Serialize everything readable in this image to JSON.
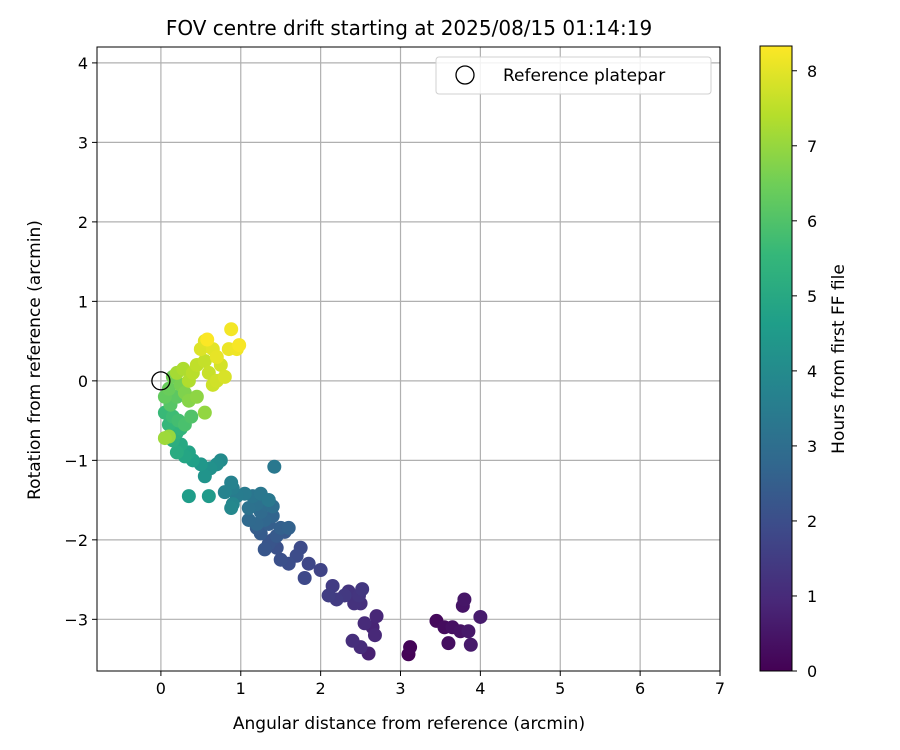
{
  "chart_data": {
    "type": "scatter",
    "title": "FOV centre drift starting at 2025/08/15 01:14:19",
    "xlabel": "Angular distance from reference (arcmin)",
    "ylabel": "Rotation from reference (arcmin)",
    "xlim": [
      -0.8,
      7.0
    ],
    "ylim": [
      -3.65,
      4.2
    ],
    "x_ticks": [
      0,
      1,
      2,
      3,
      4,
      5,
      6,
      7
    ],
    "y_ticks": [
      -3,
      -2,
      -1,
      0,
      1,
      2,
      3,
      4
    ],
    "x_tick_labels": [
      "0",
      "1",
      "2",
      "3",
      "4",
      "5",
      "6",
      "7"
    ],
    "y_tick_labels": [
      "−3",
      "−2",
      "−1",
      "0",
      "1",
      "2",
      "3",
      "4"
    ],
    "grid": true,
    "legend": {
      "placement": "top-right",
      "entries": [
        "Reference platepar"
      ]
    },
    "reference_point": {
      "x": 0,
      "y": 0,
      "label": "Reference platepar"
    },
    "colorbar": {
      "label": "Hours from first FF file",
      "min": 0,
      "max": 8.33,
      "ticks": [
        0,
        1,
        2,
        3,
        4,
        5,
        6,
        7,
        8
      ],
      "tick_labels": [
        "0",
        "1",
        "2",
        "3",
        "4",
        "5",
        "6",
        "7",
        "8"
      ],
      "colormap": "viridis"
    },
    "colormap_stops": [
      "#440154",
      "#482878",
      "#3e4989",
      "#31688e",
      "#26828e",
      "#1f9e89",
      "#35b779",
      "#6ece58",
      "#b5de2b",
      "#fde725"
    ],
    "points": [
      [
        3.1,
        -3.44,
        0.05
      ],
      [
        3.12,
        -3.35,
        0.1
      ],
      [
        3.45,
        -3.02,
        0.18
      ],
      [
        3.55,
        -3.1,
        0.25
      ],
      [
        3.6,
        -3.3,
        0.3
      ],
      [
        3.65,
        -3.1,
        0.35
      ],
      [
        3.75,
        -3.15,
        0.4
      ],
      [
        3.78,
        -2.83,
        0.45
      ],
      [
        3.8,
        -2.75,
        0.5
      ],
      [
        3.85,
        -3.15,
        0.55
      ],
      [
        3.88,
        -3.32,
        0.6
      ],
      [
        4.0,
        -2.97,
        0.65
      ],
      [
        2.6,
        -3.43,
        0.75
      ],
      [
        2.65,
        -3.1,
        0.85
      ],
      [
        2.7,
        -2.96,
        0.9
      ],
      [
        2.68,
        -3.2,
        0.95
      ],
      [
        2.55,
        -3.05,
        1.0
      ],
      [
        2.5,
        -3.35,
        1.05
      ],
      [
        2.4,
        -3.27,
        1.1
      ],
      [
        2.5,
        -2.8,
        1.15
      ],
      [
        2.42,
        -2.8,
        1.2
      ],
      [
        2.35,
        -2.65,
        1.25
      ],
      [
        2.48,
        -2.7,
        1.3
      ],
      [
        2.52,
        -2.62,
        1.35
      ],
      [
        2.3,
        -2.7,
        1.4
      ],
      [
        2.2,
        -2.75,
        1.45
      ],
      [
        2.15,
        -2.58,
        1.5
      ],
      [
        2.1,
        -2.7,
        1.55
      ],
      [
        2.0,
        -2.38,
        1.7
      ],
      [
        1.85,
        -2.3,
        1.8
      ],
      [
        1.8,
        -2.48,
        1.85
      ],
      [
        1.75,
        -2.1,
        1.9
      ],
      [
        1.7,
        -2.2,
        1.95
      ],
      [
        1.6,
        -2.3,
        2.0
      ],
      [
        1.5,
        -2.25,
        2.05
      ],
      [
        1.45,
        -2.1,
        2.1
      ],
      [
        1.4,
        -2.0,
        2.15
      ],
      [
        1.35,
        -2.05,
        2.2
      ],
      [
        1.3,
        -2.12,
        2.25
      ],
      [
        1.55,
        -1.9,
        2.3
      ],
      [
        1.45,
        -1.95,
        2.35
      ],
      [
        1.25,
        -1.92,
        2.4
      ],
      [
        1.2,
        -1.85,
        2.45
      ],
      [
        1.35,
        -1.8,
        2.5
      ],
      [
        1.5,
        -1.85,
        2.55
      ],
      [
        1.6,
        -1.85,
        2.6
      ],
      [
        1.4,
        -1.7,
        2.7
      ],
      [
        1.3,
        -1.75,
        2.75
      ],
      [
        1.2,
        -1.8,
        2.8
      ],
      [
        1.1,
        -1.75,
        2.85
      ],
      [
        1.25,
        -1.65,
        2.9
      ],
      [
        1.3,
        -1.55,
        2.95
      ],
      [
        1.4,
        -1.58,
        3.0
      ],
      [
        1.35,
        -1.5,
        3.05
      ],
      [
        1.2,
        -1.55,
        3.1
      ],
      [
        1.1,
        -1.6,
        3.15
      ],
      [
        1.15,
        -1.45,
        3.25
      ],
      [
        1.25,
        -1.42,
        3.3
      ],
      [
        1.35,
        -1.5,
        3.35
      ],
      [
        1.42,
        -1.08,
        3.35
      ],
      [
        1.05,
        -1.42,
        3.45
      ],
      [
        0.95,
        -1.45,
        3.5
      ],
      [
        0.9,
        -1.35,
        3.6
      ],
      [
        0.88,
        -1.28,
        3.7
      ],
      [
        0.8,
        -1.4,
        3.75
      ],
      [
        0.9,
        -1.55,
        3.85
      ],
      [
        0.88,
        -1.6,
        3.9
      ],
      [
        0.75,
        -1.0,
        4.0
      ],
      [
        0.7,
        -1.05,
        4.1
      ],
      [
        0.62,
        -1.1,
        4.2
      ],
      [
        0.55,
        -1.2,
        4.3
      ],
      [
        0.5,
        -1.05,
        4.4
      ],
      [
        0.6,
        -1.45,
        4.5
      ],
      [
        0.35,
        -1.45,
        4.6
      ],
      [
        0.4,
        -1.0,
        4.7
      ],
      [
        0.35,
        -0.9,
        4.8
      ],
      [
        0.3,
        -0.95,
        4.9
      ],
      [
        0.25,
        -0.8,
        5.0
      ],
      [
        0.2,
        -0.9,
        5.1
      ],
      [
        0.15,
        -0.75,
        5.2
      ],
      [
        0.2,
        -0.65,
        5.3
      ],
      [
        0.25,
        -0.6,
        5.4
      ],
      [
        0.1,
        -0.55,
        5.5
      ],
      [
        0.05,
        -0.4,
        5.6
      ],
      [
        0.15,
        -0.45,
        5.7
      ],
      [
        0.22,
        -0.5,
        5.8
      ],
      [
        0.3,
        -0.55,
        5.9
      ],
      [
        0.38,
        -0.45,
        6.0
      ],
      [
        0.12,
        -0.3,
        6.1
      ],
      [
        0.2,
        -0.2,
        6.2
      ],
      [
        0.05,
        -0.2,
        6.3
      ],
      [
        0.1,
        -0.1,
        6.4
      ],
      [
        0.15,
        0.05,
        6.5
      ],
      [
        0.25,
        -0.05,
        6.6
      ],
      [
        0.3,
        -0.15,
        6.7
      ],
      [
        0.35,
        -0.25,
        6.8
      ],
      [
        0.45,
        -0.2,
        6.9
      ],
      [
        0.55,
        -0.4,
        6.95
      ],
      [
        0.1,
        -0.7,
        7.0
      ],
      [
        0.05,
        -0.72,
        7.1
      ],
      [
        0.2,
        0.1,
        7.2
      ],
      [
        0.28,
        0.15,
        7.3
      ],
      [
        0.35,
        0.0,
        7.35
      ],
      [
        0.4,
        0.1,
        7.45
      ],
      [
        0.45,
        0.2,
        7.55
      ],
      [
        0.55,
        0.25,
        7.6
      ],
      [
        0.6,
        0.1,
        7.65
      ],
      [
        0.65,
        -0.05,
        7.7
      ],
      [
        0.7,
        0.0,
        7.75
      ],
      [
        0.75,
        0.2,
        7.8
      ],
      [
        0.8,
        0.05,
        7.85
      ],
      [
        0.5,
        0.4,
        7.9
      ],
      [
        0.55,
        0.5,
        7.95
      ],
      [
        0.65,
        0.4,
        8.0
      ],
      [
        0.7,
        0.3,
        8.05
      ],
      [
        0.85,
        0.4,
        8.1
      ],
      [
        0.95,
        0.4,
        8.15
      ],
      [
        0.88,
        0.65,
        8.2
      ],
      [
        0.98,
        0.45,
        8.25
      ],
      [
        0.58,
        0.52,
        8.3
      ]
    ]
  }
}
